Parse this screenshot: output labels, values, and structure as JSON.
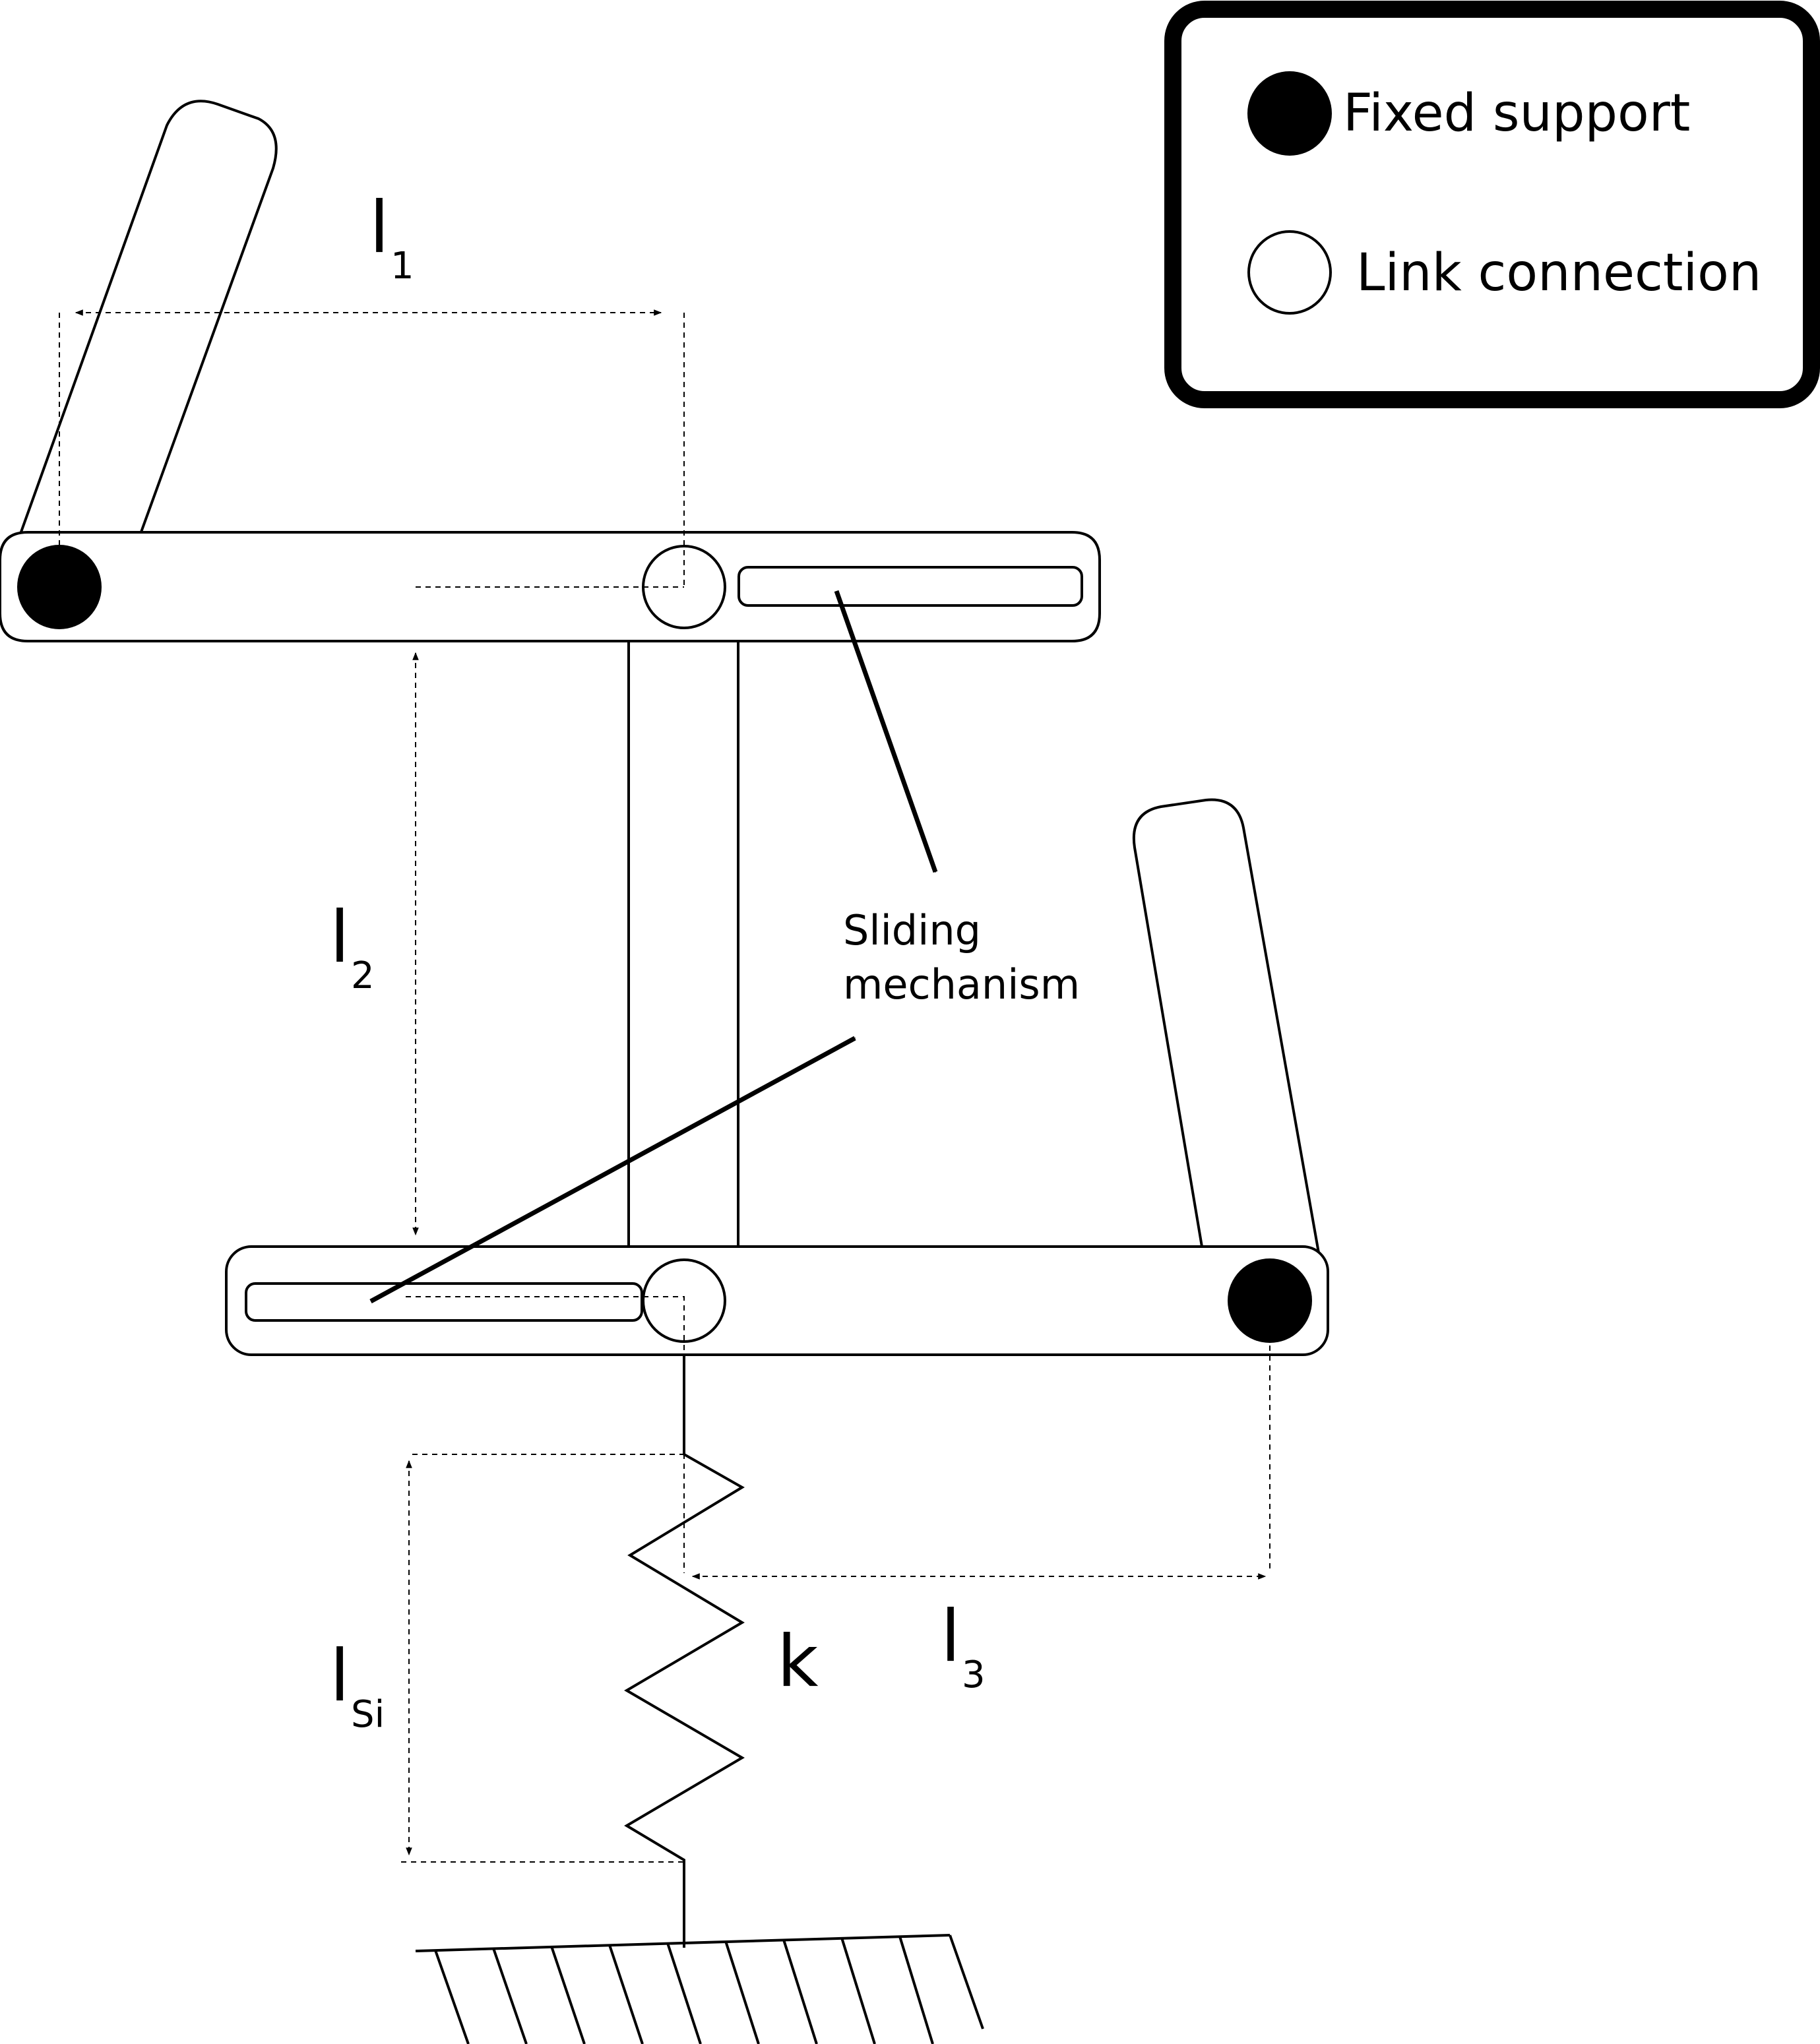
{
  "legend": {
    "fixed_support": "Fixed support",
    "link_connection": "Link connection"
  },
  "labels": {
    "l1_main": "l",
    "l1_sub": "1",
    "l2_main": "l",
    "l2_sub": "2",
    "l3_main": "l",
    "l3_sub": "3",
    "lsi_main": "l",
    "lsi_sub": "Si",
    "spring": "k",
    "sliding_line1": "Sliding",
    "sliding_line2": "mechanism"
  },
  "colors": {
    "stroke": "#000000",
    "background": "#ffffff"
  }
}
